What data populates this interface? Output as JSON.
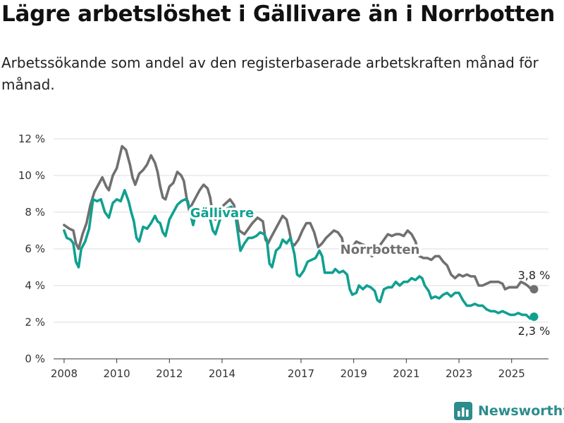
{
  "title": "Lägre arbetslöshet i Gällivare än i Norrbotten",
  "subtitle": "Arbetssökande som andel av den registerbaserade arbetskraften månad för månad.",
  "brand": {
    "name": "Newsworthy",
    "icon": "bar-chart-logo-icon",
    "color": "#2d8c8c"
  },
  "chart_data": {
    "type": "line",
    "ylim": [
      0,
      12
    ],
    "xlim": [
      2007.6,
      2026.4
    ],
    "y_ticks": [
      {
        "value": 0,
        "label": "0 %"
      },
      {
        "value": 2,
        "label": "2 %"
      },
      {
        "value": 4,
        "label": "4 %"
      },
      {
        "value": 6,
        "label": "6 %"
      },
      {
        "value": 8,
        "label": "8 %"
      },
      {
        "value": 10,
        "label": "10 %"
      },
      {
        "value": 12,
        "label": "12 %"
      }
    ],
    "x_ticks": [
      {
        "value": 2008,
        "label": "2008"
      },
      {
        "value": 2010,
        "label": "2010"
      },
      {
        "value": 2012,
        "label": "2012"
      },
      {
        "value": 2014,
        "label": "2014"
      },
      {
        "value": 2017,
        "label": "2017"
      },
      {
        "value": 2019,
        "label": "2019"
      },
      {
        "value": 2021,
        "label": "2021"
      },
      {
        "value": 2023,
        "label": "2023"
      },
      {
        "value": 2025,
        "label": "2025"
      }
    ],
    "grid": true,
    "series": [
      {
        "name": "Norrbotten",
        "color": "#707070",
        "end_label": "3,8 %",
        "points": [
          [
            2008.0,
            7.3
          ],
          [
            2008.2,
            7.1
          ],
          [
            2008.35,
            7.0
          ],
          [
            2008.45,
            6.3
          ],
          [
            2008.55,
            6.0
          ],
          [
            2008.7,
            6.8
          ],
          [
            2008.85,
            7.4
          ],
          [
            2009.0,
            8.4
          ],
          [
            2009.15,
            9.1
          ],
          [
            2009.3,
            9.5
          ],
          [
            2009.45,
            9.9
          ],
          [
            2009.6,
            9.4
          ],
          [
            2009.7,
            9.2
          ],
          [
            2009.85,
            10.0
          ],
          [
            2010.0,
            10.4
          ],
          [
            2010.1,
            11.0
          ],
          [
            2010.2,
            11.6
          ],
          [
            2010.35,
            11.4
          ],
          [
            2010.5,
            10.6
          ],
          [
            2010.6,
            9.9
          ],
          [
            2010.7,
            9.5
          ],
          [
            2010.85,
            10.1
          ],
          [
            2011.0,
            10.3
          ],
          [
            2011.15,
            10.6
          ],
          [
            2011.3,
            11.1
          ],
          [
            2011.45,
            10.7
          ],
          [
            2011.55,
            10.2
          ],
          [
            2011.65,
            9.4
          ],
          [
            2011.75,
            8.8
          ],
          [
            2011.85,
            8.7
          ],
          [
            2012.0,
            9.4
          ],
          [
            2012.15,
            9.6
          ],
          [
            2012.3,
            10.2
          ],
          [
            2012.45,
            10.0
          ],
          [
            2012.55,
            9.7
          ],
          [
            2012.65,
            8.8
          ],
          [
            2012.75,
            8.1
          ],
          [
            2012.85,
            8.4
          ],
          [
            2013.0,
            8.8
          ],
          [
            2013.15,
            9.2
          ],
          [
            2013.3,
            9.5
          ],
          [
            2013.45,
            9.3
          ],
          [
            2013.55,
            8.8
          ],
          [
            2013.65,
            7.8
          ],
          [
            2013.75,
            7.6
          ],
          [
            2013.85,
            7.9
          ],
          [
            2014.0,
            8.3
          ],
          [
            2014.15,
            8.5
          ],
          [
            2014.3,
            8.7
          ],
          [
            2014.45,
            8.4
          ],
          [
            2014.55,
            7.8
          ],
          [
            2014.65,
            7.0
          ],
          [
            2014.75,
            6.9
          ],
          [
            2014.85,
            6.8
          ],
          [
            2015.0,
            7.1
          ],
          [
            2015.15,
            7.4
          ],
          [
            2015.35,
            7.7
          ],
          [
            2015.55,
            7.5
          ],
          [
            2015.65,
            6.5
          ],
          [
            2015.75,
            6.3
          ],
          [
            2015.85,
            6.6
          ],
          [
            2016.0,
            7.0
          ],
          [
            2016.15,
            7.4
          ],
          [
            2016.3,
            7.8
          ],
          [
            2016.45,
            7.6
          ],
          [
            2016.55,
            7.0
          ],
          [
            2016.65,
            6.3
          ],
          [
            2016.75,
            6.2
          ],
          [
            2016.9,
            6.5
          ],
          [
            2017.05,
            7.0
          ],
          [
            2017.2,
            7.4
          ],
          [
            2017.35,
            7.4
          ],
          [
            2017.5,
            6.9
          ],
          [
            2017.65,
            6.1
          ],
          [
            2017.8,
            6.3
          ],
          [
            2017.95,
            6.6
          ],
          [
            2018.1,
            6.8
          ],
          [
            2018.25,
            7.0
          ],
          [
            2018.4,
            6.9
          ],
          [
            2018.55,
            6.6
          ],
          [
            2018.65,
            5.9
          ],
          [
            2018.8,
            5.8
          ],
          [
            2018.95,
            6.1
          ],
          [
            2019.1,
            6.4
          ],
          [
            2019.25,
            6.3
          ],
          [
            2019.4,
            6.2
          ],
          [
            2019.55,
            5.8
          ],
          [
            2019.7,
            5.6
          ],
          [
            2019.85,
            5.9
          ],
          [
            2020.0,
            6.2
          ],
          [
            2020.15,
            6.5
          ],
          [
            2020.3,
            6.8
          ],
          [
            2020.45,
            6.7
          ],
          [
            2020.6,
            6.8
          ],
          [
            2020.75,
            6.8
          ],
          [
            2020.9,
            6.7
          ],
          [
            2021.05,
            7.0
          ],
          [
            2021.2,
            6.8
          ],
          [
            2021.35,
            6.4
          ],
          [
            2021.5,
            5.6
          ],
          [
            2021.65,
            5.5
          ],
          [
            2021.8,
            5.5
          ],
          [
            2021.95,
            5.4
          ],
          [
            2022.1,
            5.6
          ],
          [
            2022.25,
            5.6
          ],
          [
            2022.4,
            5.3
          ],
          [
            2022.55,
            5.1
          ],
          [
            2022.7,
            4.6
          ],
          [
            2022.85,
            4.4
          ],
          [
            2023.0,
            4.6
          ],
          [
            2023.15,
            4.5
          ],
          [
            2023.3,
            4.6
          ],
          [
            2023.45,
            4.5
          ],
          [
            2023.6,
            4.5
          ],
          [
            2023.75,
            4.0
          ],
          [
            2023.9,
            4.0
          ],
          [
            2024.05,
            4.1
          ],
          [
            2024.2,
            4.2
          ],
          [
            2024.35,
            4.2
          ],
          [
            2024.5,
            4.2
          ],
          [
            2024.65,
            4.1
          ],
          [
            2024.75,
            3.8
          ],
          [
            2024.9,
            3.9
          ],
          [
            2025.05,
            3.9
          ],
          [
            2025.2,
            3.9
          ],
          [
            2025.35,
            4.2
          ],
          [
            2025.5,
            4.1
          ],
          [
            2025.6,
            4.0
          ],
          [
            2025.75,
            3.8
          ],
          [
            2025.85,
            3.8
          ]
        ]
      },
      {
        "name": "Gällivare",
        "color": "#10a090",
        "end_label": "2,3 %",
        "points": [
          [
            2008.0,
            7.0
          ],
          [
            2008.1,
            6.6
          ],
          [
            2008.25,
            6.5
          ],
          [
            2008.35,
            6.3
          ],
          [
            2008.45,
            5.3
          ],
          [
            2008.55,
            5.0
          ],
          [
            2008.65,
            6.0
          ],
          [
            2008.8,
            6.4
          ],
          [
            2008.95,
            7.1
          ],
          [
            2009.1,
            8.7
          ],
          [
            2009.25,
            8.6
          ],
          [
            2009.4,
            8.7
          ],
          [
            2009.55,
            8.0
          ],
          [
            2009.7,
            7.7
          ],
          [
            2009.85,
            8.5
          ],
          [
            2010.0,
            8.7
          ],
          [
            2010.15,
            8.6
          ],
          [
            2010.3,
            9.2
          ],
          [
            2010.45,
            8.6
          ],
          [
            2010.55,
            8.0
          ],
          [
            2010.65,
            7.5
          ],
          [
            2010.75,
            6.6
          ],
          [
            2010.85,
            6.4
          ],
          [
            2011.0,
            7.2
          ],
          [
            2011.15,
            7.1
          ],
          [
            2011.3,
            7.4
          ],
          [
            2011.45,
            7.8
          ],
          [
            2011.55,
            7.5
          ],
          [
            2011.65,
            7.4
          ],
          [
            2011.75,
            6.9
          ],
          [
            2011.85,
            6.7
          ],
          [
            2012.0,
            7.6
          ],
          [
            2012.15,
            8.0
          ],
          [
            2012.3,
            8.4
          ],
          [
            2012.45,
            8.6
          ],
          [
            2012.6,
            8.7
          ],
          [
            2012.7,
            8.6
          ],
          [
            2012.8,
            7.9
          ],
          [
            2012.9,
            7.3
          ],
          [
            2013.0,
            7.9
          ],
          [
            2013.15,
            8.0
          ],
          [
            2013.3,
            8.3
          ],
          [
            2013.45,
            8.2
          ],
          [
            2013.55,
            7.6
          ],
          [
            2013.65,
            7.0
          ],
          [
            2013.75,
            6.8
          ],
          [
            2013.9,
            7.5
          ],
          [
            2014.05,
            8.0
          ],
          [
            2014.2,
            8.2
          ],
          [
            2014.35,
            8.3
          ],
          [
            2014.5,
            7.9
          ],
          [
            2014.6,
            6.9
          ],
          [
            2014.7,
            5.9
          ],
          [
            2014.85,
            6.3
          ],
          [
            2015.0,
            6.6
          ],
          [
            2015.15,
            6.6
          ],
          [
            2015.3,
            6.7
          ],
          [
            2015.45,
            6.9
          ],
          [
            2015.6,
            6.8
          ],
          [
            2015.7,
            6.5
          ],
          [
            2015.8,
            5.2
          ],
          [
            2015.9,
            5.0
          ],
          [
            2016.05,
            5.9
          ],
          [
            2016.2,
            6.1
          ],
          [
            2016.3,
            6.5
          ],
          [
            2016.45,
            6.3
          ],
          [
            2016.6,
            6.6
          ],
          [
            2016.75,
            5.7
          ],
          [
            2016.85,
            4.6
          ],
          [
            2016.95,
            4.5
          ],
          [
            2017.1,
            4.8
          ],
          [
            2017.25,
            5.3
          ],
          [
            2017.4,
            5.4
          ],
          [
            2017.55,
            5.5
          ],
          [
            2017.7,
            5.9
          ],
          [
            2017.8,
            5.6
          ],
          [
            2017.9,
            4.7
          ],
          [
            2018.05,
            4.7
          ],
          [
            2018.2,
            4.7
          ],
          [
            2018.3,
            4.9
          ],
          [
            2018.45,
            4.7
          ],
          [
            2018.6,
            4.8
          ],
          [
            2018.75,
            4.6
          ],
          [
            2018.85,
            3.8
          ],
          [
            2018.95,
            3.5
          ],
          [
            2019.1,
            3.6
          ],
          [
            2019.2,
            4.0
          ],
          [
            2019.35,
            3.8
          ],
          [
            2019.5,
            4.0
          ],
          [
            2019.65,
            3.9
          ],
          [
            2019.8,
            3.7
          ],
          [
            2019.9,
            3.2
          ],
          [
            2020.0,
            3.1
          ],
          [
            2020.15,
            3.8
          ],
          [
            2020.3,
            3.9
          ],
          [
            2020.45,
            3.9
          ],
          [
            2020.6,
            4.2
          ],
          [
            2020.75,
            4.0
          ],
          [
            2020.9,
            4.2
          ],
          [
            2021.05,
            4.2
          ],
          [
            2021.2,
            4.4
          ],
          [
            2021.35,
            4.3
          ],
          [
            2021.5,
            4.5
          ],
          [
            2021.6,
            4.4
          ],
          [
            2021.7,
            4.0
          ],
          [
            2021.85,
            3.7
          ],
          [
            2021.95,
            3.3
          ],
          [
            2022.1,
            3.4
          ],
          [
            2022.25,
            3.3
          ],
          [
            2022.4,
            3.5
          ],
          [
            2022.55,
            3.6
          ],
          [
            2022.7,
            3.4
          ],
          [
            2022.85,
            3.6
          ],
          [
            2023.0,
            3.6
          ],
          [
            2023.15,
            3.2
          ],
          [
            2023.3,
            2.9
          ],
          [
            2023.45,
            2.9
          ],
          [
            2023.6,
            3.0
          ],
          [
            2023.75,
            2.9
          ],
          [
            2023.9,
            2.9
          ],
          [
            2024.05,
            2.7
          ],
          [
            2024.2,
            2.6
          ],
          [
            2024.35,
            2.6
          ],
          [
            2024.5,
            2.5
          ],
          [
            2024.65,
            2.6
          ],
          [
            2024.8,
            2.5
          ],
          [
            2024.95,
            2.4
          ],
          [
            2025.1,
            2.4
          ],
          [
            2025.25,
            2.5
          ],
          [
            2025.4,
            2.4
          ],
          [
            2025.55,
            2.4
          ],
          [
            2025.7,
            2.2
          ],
          [
            2025.85,
            2.3
          ]
        ]
      }
    ],
    "annotations": [
      {
        "text": "Gällivare",
        "series": "Gällivare",
        "x": 2014.0,
        "y": 8.0,
        "color": "#10a090"
      },
      {
        "text": "Norrbotten",
        "series": "Norrbotten",
        "x": 2020.0,
        "y": 6.0,
        "color": "#707070"
      }
    ]
  }
}
